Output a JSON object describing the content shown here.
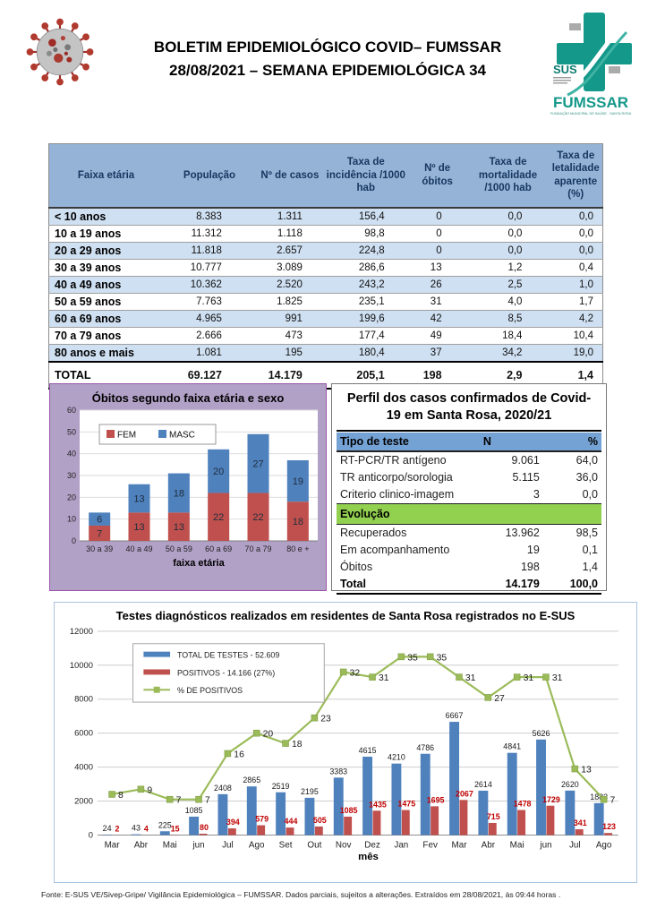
{
  "header": {
    "title_line1": "BOLETIM EPIDEMIOLÓGICO COVID– FUMSSAR",
    "title_line2": "28/08/2021 – SEMANA EPIDEMIOLÓGICA 34",
    "logo_sus": "SUS",
    "logo_name": "FUMSSAR",
    "logo_tagline": "FUNDAÇÃO MUNICIPAL DE SAÚDE - SANTA ROSA"
  },
  "incidence_table": {
    "columns": [
      "Faixa etária",
      "População",
      "Nº de casos",
      "Taxa de incidência /1000 hab",
      "Nº de óbitos",
      "Taxa de mortalidade /1000 hab",
      "Taxa de letalidade aparente (%)"
    ],
    "rows": [
      [
        "< 10 anos",
        "8.383",
        "1.311",
        "156,4",
        "0",
        "0,0",
        "0,0"
      ],
      [
        "10 a 19 anos",
        "11.312",
        "1.118",
        "98,8",
        "0",
        "0,0",
        "0,0"
      ],
      [
        "20 a 29 anos",
        "11.818",
        "2.657",
        "224,8",
        "0",
        "0,0",
        "0,0"
      ],
      [
        "30 a 39 anos",
        "10.777",
        "3.089",
        "286,6",
        "13",
        "1,2",
        "0,4"
      ],
      [
        "40 a 49 anos",
        "10.362",
        "2.520",
        "243,2",
        "26",
        "2,5",
        "1,0"
      ],
      [
        "50 a 59 anos",
        "7.763",
        "1.825",
        "235,1",
        "31",
        "4,0",
        "1,7"
      ],
      [
        "60 a 69 anos",
        "4.965",
        "991",
        "199,6",
        "42",
        "8,5",
        "4,2"
      ],
      [
        "70 a 79 anos",
        "2.666",
        "473",
        "177,4",
        "49",
        "18,4",
        "10,4"
      ],
      [
        "80 anos e mais",
        "1.081",
        "195",
        "180,4",
        "37",
        "34,2",
        "19,0"
      ]
    ],
    "total_row": [
      "TOTAL",
      "69.127",
      "14.179",
      "205,1",
      "198",
      "2,9",
      "1,4"
    ]
  },
  "profile_table": {
    "title": "Perfil dos casos confirmados de Covid-19 em Santa Rosa, 2020/21",
    "header": [
      "Tipo de teste",
      "N",
      "%"
    ],
    "test_rows": [
      [
        "RT-PCR/TR antígeno",
        "9.061",
        "64,0"
      ],
      [
        "TR anticorpo/sorologia",
        "5.115",
        "36,0"
      ],
      [
        "Criterio clinico-imagem",
        "3",
        "0,0"
      ]
    ],
    "section_header": "Evolução",
    "evolution_rows": [
      [
        "Recuperados",
        "13.962",
        "98,5"
      ],
      [
        "Em acompanhamento",
        "19",
        "0,1"
      ],
      [
        "Óbitos",
        "198",
        "1,4"
      ]
    ],
    "total_row": [
      "Total",
      "14.179",
      "100,0"
    ]
  },
  "chart_data": [
    {
      "type": "bar",
      "subtype": "stacked",
      "title": "Óbitos segundo faixa etária e sexo",
      "categories": [
        "30 a 39",
        "40 a 49",
        "50 a 59",
        "60 a 69",
        "70 a 79",
        "80 e +"
      ],
      "series": [
        {
          "name": "FEM",
          "color": "#C0504D",
          "values": [
            7,
            13,
            13,
            22,
            22,
            18
          ]
        },
        {
          "name": "MASC",
          "color": "#4F81BD",
          "values": [
            6,
            13,
            18,
            20,
            27,
            19
          ]
        }
      ],
      "xlabel": "faixa etária",
      "ylabel": "",
      "ylim": [
        0,
        60
      ],
      "ytick": 10,
      "grid": true,
      "legend_position": "top-left-inside"
    },
    {
      "type": "combo",
      "title": "Testes diagnósticos realizados em residentes de Santa Rosa registrados no E-SUS",
      "categories": [
        "Mar",
        "Abr",
        "Mai",
        "jun",
        "Jul",
        "Ago",
        "Set",
        "Out",
        "Nov",
        "Dez",
        "Jan",
        "Fev",
        "Mar",
        "Abr",
        "Mai",
        "jun",
        "Jul",
        "Ago"
      ],
      "bar_series": [
        {
          "name": "TOTAL DE TESTES  -  52.609",
          "color": "#4F81BD",
          "values": [
            24,
            43,
            225,
            1085,
            2408,
            2865,
            2519,
            2195,
            3383,
            4615,
            4210,
            4786,
            6667,
            2614,
            4841,
            5626,
            2620,
            1883
          ]
        },
        {
          "name": "POSITIVOS - 14.166 (27%)",
          "color": "#C0504D",
          "label_color": "#C00000",
          "values": [
            2,
            4,
            15,
            80,
            394,
            579,
            444,
            505,
            1085,
            1435,
            1475,
            1695,
            2067,
            715,
            1478,
            1729,
            341,
            123
          ]
        }
      ],
      "line_series": {
        "name": "% DE POSITIVOS",
        "color": "#9BBB59",
        "values": [
          8,
          9,
          7,
          7,
          16,
          20,
          18,
          23,
          32,
          31,
          35,
          35,
          31,
          27,
          31,
          31,
          13,
          7
        ],
        "secondary_ylim": [
          0,
          40
        ]
      },
      "xlabel": "mês",
      "ylim": [
        0,
        12000
      ],
      "ytick": 2000,
      "grid": true,
      "legend_position": "top-left-inside"
    }
  ],
  "footer": {
    "source": "Fonte: E-SUS VE/Sivep-Gripe/ Vigilância Epidemiológica – FUMSSAR. Dados parciais, sujeitos a alterações.  Extraídos em 28/08/2021, às 09:44 horas ."
  },
  "colors": {
    "table_header_blue": "#95B3D7",
    "row_alt_blue": "#CFE0F2",
    "profile_header_blue": "#74A2D4",
    "evolution_green": "#92D050",
    "panel_lavender": "#B2A1C7",
    "bar_blue": "#4F81BD",
    "bar_red": "#C0504D",
    "line_green": "#9BBB59",
    "logo_teal": "#14988A"
  }
}
